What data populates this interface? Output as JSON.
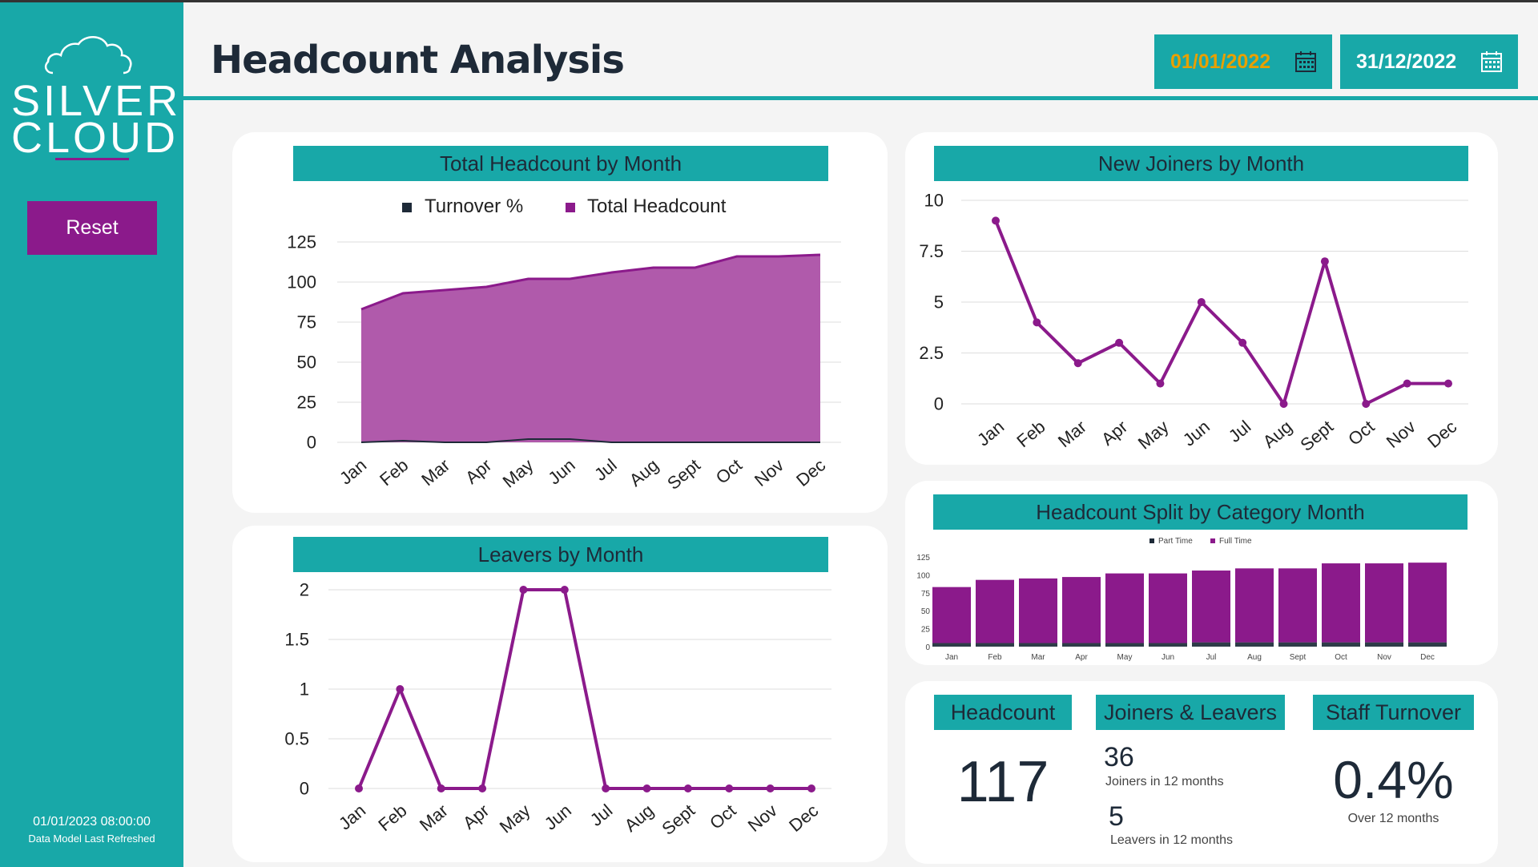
{
  "brand": {
    "line1": "SILVER",
    "line2": "CLOUD"
  },
  "sidebar": {
    "reset_label": "Reset",
    "refresh_timestamp": "01/01/2023 08:00:00",
    "refresh_label": "Data Model Last Refreshed"
  },
  "header": {
    "title": "Headcount Analysis",
    "start_date": "01/01/2022",
    "end_date": "31/12/2022"
  },
  "colors": {
    "teal": "#18a8a8",
    "purple": "#8b1a8b",
    "navy": "#1e2a38",
    "area": "#b05aab"
  },
  "chart_data": [
    {
      "id": "total_headcount",
      "type": "area",
      "title": "Total Headcount by Month",
      "legend": [
        "Turnover %",
        "Total Headcount"
      ],
      "categories": [
        "Jan",
        "Feb",
        "Mar",
        "Apr",
        "May",
        "Jun",
        "Jul",
        "Aug",
        "Sept",
        "Oct",
        "Nov",
        "Dec"
      ],
      "series": [
        {
          "name": "Total Headcount",
          "values": [
            83,
            93,
            95,
            97,
            102,
            102,
            106,
            109,
            109,
            116,
            116,
            117
          ]
        },
        {
          "name": "Turnover %",
          "values": [
            0,
            1,
            0,
            0,
            2,
            2,
            0,
            0,
            0,
            0,
            0,
            0
          ]
        }
      ],
      "yticks": [
        0,
        25,
        50,
        75,
        100,
        125
      ],
      "ylim": [
        0,
        125
      ]
    },
    {
      "id": "new_joiners",
      "type": "line",
      "title": "New Joiners by Month",
      "categories": [
        "Jan",
        "Feb",
        "Mar",
        "Apr",
        "May",
        "Jun",
        "Jul",
        "Aug",
        "Sept",
        "Oct",
        "Nov",
        "Dec"
      ],
      "values": [
        9,
        4,
        2,
        3,
        1,
        5,
        3,
        0,
        7,
        0,
        1,
        1
      ],
      "yticks": [
        "0",
        "2.5",
        "5",
        "7.5",
        "10"
      ],
      "ylim": [
        0,
        10
      ]
    },
    {
      "id": "leavers",
      "type": "line",
      "title": "Leavers by Month",
      "categories": [
        "Jan",
        "Feb",
        "Mar",
        "Apr",
        "May",
        "Jun",
        "Jul",
        "Aug",
        "Sept",
        "Oct",
        "Nov",
        "Dec"
      ],
      "values": [
        0,
        1,
        0,
        0,
        2,
        2,
        0,
        0,
        0,
        0,
        0,
        0
      ],
      "yticks": [
        "0",
        "0.5",
        "1",
        "1.5",
        "2"
      ],
      "ylim": [
        0,
        2
      ]
    },
    {
      "id": "split",
      "type": "bar",
      "title": "Headcount Split by Category Month",
      "legend": [
        "Part Time",
        "Full Time"
      ],
      "categories": [
        "Jan",
        "Feb",
        "Mar",
        "Apr",
        "May",
        "Jun",
        "Jul",
        "Aug",
        "Sept",
        "Oct",
        "Nov",
        "Dec"
      ],
      "series": [
        {
          "name": "Part Time",
          "values": [
            5,
            5,
            5,
            5,
            5,
            5,
            6,
            6,
            6,
            6,
            6,
            6
          ]
        },
        {
          "name": "Full Time",
          "values": [
            78,
            88,
            90,
            92,
            97,
            97,
            100,
            103,
            103,
            110,
            110,
            111
          ]
        }
      ],
      "yticks": [
        0,
        25,
        50,
        75,
        100,
        125
      ],
      "ylim": [
        0,
        125
      ]
    }
  ],
  "kpis": {
    "headcount": {
      "title": "Headcount",
      "value": "117"
    },
    "joiners_leavers": {
      "title": "Joiners & Leavers",
      "joiners_value": "36",
      "joiners_label": "Joiners in 12 months",
      "leavers_value": "5",
      "leavers_label": "Leavers in 12 months"
    },
    "turnover": {
      "title": "Staff Turnover",
      "value": "0.4%",
      "label": "Over 12 months"
    }
  }
}
